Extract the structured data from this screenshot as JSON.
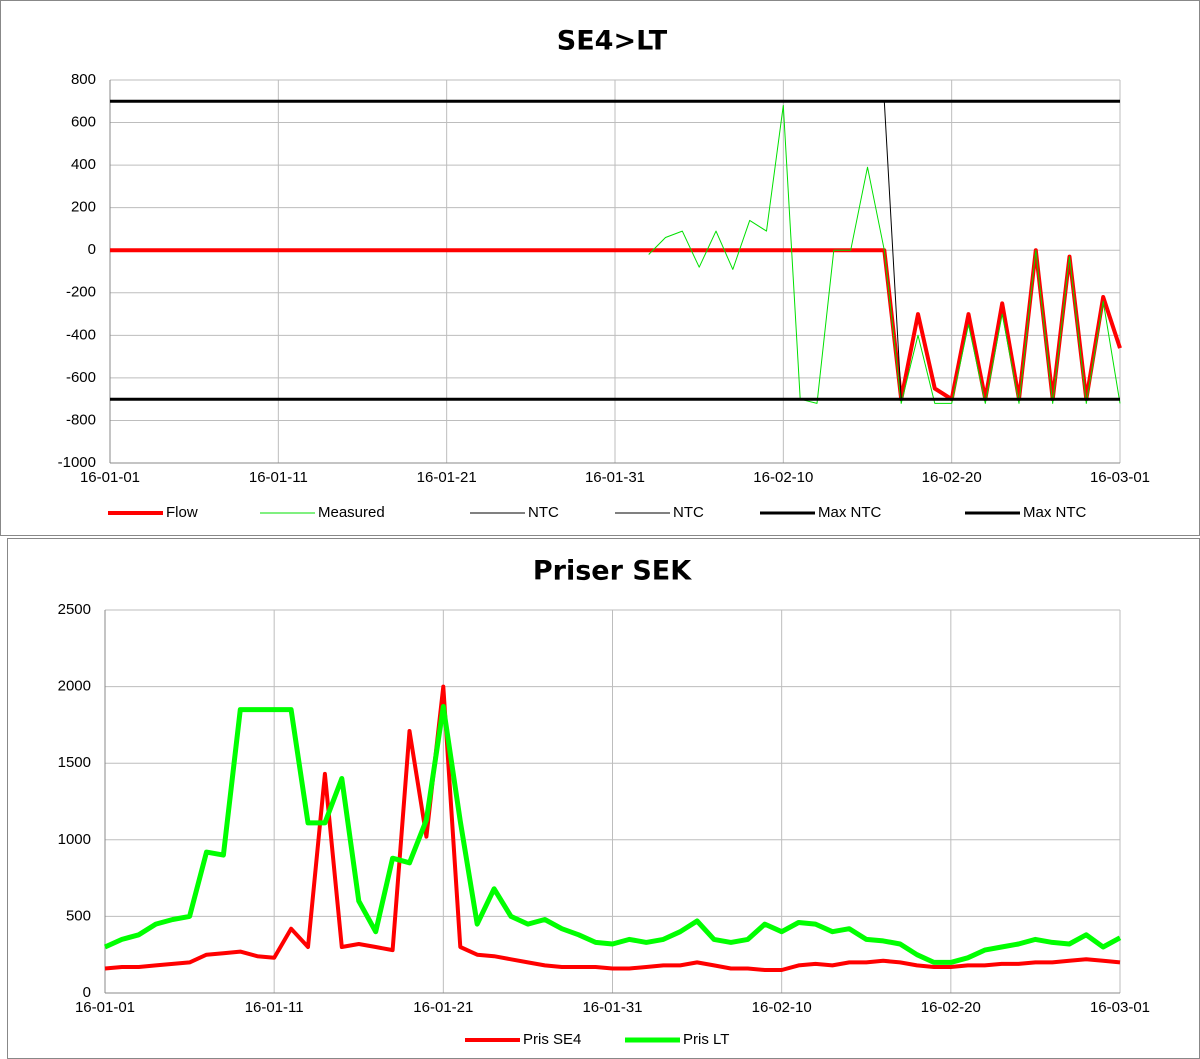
{
  "chart_data": [
    {
      "type": "line",
      "title": "SE4>LT",
      "x": [
        "16-01-01",
        "16-01-02",
        "16-01-03",
        "16-01-04",
        "16-01-05",
        "16-01-06",
        "16-01-07",
        "16-01-08",
        "16-01-09",
        "16-01-10",
        "16-01-11",
        "16-01-12",
        "16-01-13",
        "16-01-14",
        "16-01-15",
        "16-01-16",
        "16-01-17",
        "16-01-18",
        "16-01-19",
        "16-01-20",
        "16-01-21",
        "16-01-22",
        "16-01-23",
        "16-01-24",
        "16-01-25",
        "16-01-26",
        "16-01-27",
        "16-01-28",
        "16-01-29",
        "16-01-30",
        "16-01-31",
        "16-02-01",
        "16-02-02",
        "16-02-03",
        "16-02-04",
        "16-02-05",
        "16-02-06",
        "16-02-07",
        "16-02-08",
        "16-02-09",
        "16-02-10",
        "16-02-11",
        "16-02-12",
        "16-02-13",
        "16-02-14",
        "16-02-15",
        "16-02-16",
        "16-02-17",
        "16-02-18",
        "16-02-19",
        "16-02-20",
        "16-02-21",
        "16-02-22",
        "16-02-23",
        "16-02-24",
        "16-02-25",
        "16-02-26",
        "16-02-27",
        "16-02-28",
        "16-02-29",
        "16-03-01"
      ],
      "series": [
        {
          "name": "Flow",
          "color": "#ff0000",
          "values": [
            0,
            0,
            0,
            0,
            0,
            0,
            0,
            0,
            0,
            0,
            0,
            0,
            0,
            0,
            0,
            0,
            0,
            0,
            0,
            0,
            0,
            0,
            0,
            0,
            0,
            0,
            0,
            0,
            0,
            0,
            0,
            0,
            0,
            0,
            0,
            0,
            0,
            0,
            0,
            0,
            0,
            0,
            0,
            0,
            0,
            0,
            0,
            -700,
            -300,
            -650,
            -700,
            -300,
            -700,
            -250,
            -700,
            0,
            -700,
            -30,
            -700,
            -220,
            -460
          ]
        },
        {
          "name": "Measured",
          "color": "#00e000",
          "values": [
            null,
            null,
            null,
            null,
            null,
            null,
            null,
            null,
            null,
            null,
            null,
            null,
            null,
            null,
            null,
            null,
            null,
            null,
            null,
            null,
            null,
            null,
            null,
            null,
            null,
            null,
            null,
            null,
            null,
            null,
            null,
            null,
            -20,
            60,
            90,
            -80,
            90,
            -90,
            140,
            90,
            680,
            -700,
            -720,
            0,
            0,
            390,
            0,
            -720,
            -400,
            -720,
            -720,
            -350,
            -720,
            -300,
            -720,
            0,
            -720,
            -30,
            -720,
            -240,
            -720
          ]
        },
        {
          "name": "NTC",
          "color": "#000000",
          "values": [
            700,
            700,
            700,
            700,
            700,
            700,
            700,
            700,
            700,
            700,
            700,
            700,
            700,
            700,
            700,
            700,
            700,
            700,
            700,
            700,
            700,
            700,
            700,
            700,
            700,
            700,
            700,
            700,
            700,
            700,
            700,
            700,
            700,
            700,
            700,
            700,
            700,
            700,
            700,
            700,
            700,
            700,
            700,
            700,
            700,
            700,
            700,
            -700,
            -700,
            -700,
            -700,
            -700,
            -700,
            -700,
            -700,
            -700,
            -700,
            -700,
            -700,
            -700,
            -700
          ]
        },
        {
          "name": "NTC",
          "color": "#000000",
          "values": [
            -700,
            -700,
            -700,
            -700,
            -700,
            -700,
            -700,
            -700,
            -700,
            -700,
            -700,
            -700,
            -700,
            -700,
            -700,
            -700,
            -700,
            -700,
            -700,
            -700,
            -700,
            -700,
            -700,
            -700,
            -700,
            -700,
            -700,
            -700,
            -700,
            -700,
            -700,
            -700,
            -700,
            -700,
            -700,
            -700,
            -700,
            -700,
            -700,
            -700,
            -700,
            -700,
            -700,
            -700,
            -700,
            -700,
            -700,
            -700,
            -700,
            -700,
            -700,
            -700,
            -700,
            -700,
            -700,
            -700,
            -700,
            -700,
            -700,
            -700,
            -700
          ]
        },
        {
          "name": "Max NTC",
          "color": "#000000",
          "values": [
            700,
            700,
            700,
            700,
            700,
            700,
            700,
            700,
            700,
            700,
            700,
            700,
            700,
            700,
            700,
            700,
            700,
            700,
            700,
            700,
            700,
            700,
            700,
            700,
            700,
            700,
            700,
            700,
            700,
            700,
            700,
            700,
            700,
            700,
            700,
            700,
            700,
            700,
            700,
            700,
            700,
            700,
            700,
            700,
            700,
            700,
            700,
            700,
            700,
            700,
            700,
            700,
            700,
            700,
            700,
            700,
            700,
            700,
            700,
            700,
            700
          ]
        },
        {
          "name": "Max NTC",
          "color": "#000000",
          "values": [
            -700,
            -700,
            -700,
            -700,
            -700,
            -700,
            -700,
            -700,
            -700,
            -700,
            -700,
            -700,
            -700,
            -700,
            -700,
            -700,
            -700,
            -700,
            -700,
            -700,
            -700,
            -700,
            -700,
            -700,
            -700,
            -700,
            -700,
            -700,
            -700,
            -700,
            -700,
            -700,
            -700,
            -700,
            -700,
            -700,
            -700,
            -700,
            -700,
            -700,
            -700,
            -700,
            -700,
            -700,
            -700,
            -700,
            -700,
            -700,
            -700,
            -700,
            -700,
            -700,
            -700,
            -700,
            -700,
            -700,
            -700,
            -700,
            -700,
            -700,
            -700
          ]
        }
      ],
      "xlim": [
        "16-01-01",
        "16-03-01"
      ],
      "xticks": [
        "16-01-01",
        "16-01-11",
        "16-01-21",
        "16-01-31",
        "16-02-10",
        "16-02-20",
        "16-03-01"
      ],
      "ylim": [
        -1000,
        800
      ],
      "yticks": [
        -1000,
        -800,
        -600,
        -400,
        -200,
        0,
        200,
        400,
        600,
        800
      ],
      "grid": true,
      "legend": "bottom"
    },
    {
      "type": "line",
      "title": "Priser SEK",
      "x": [
        "16-01-01",
        "16-01-02",
        "16-01-03",
        "16-01-04",
        "16-01-05",
        "16-01-06",
        "16-01-07",
        "16-01-08",
        "16-01-09",
        "16-01-10",
        "16-01-11",
        "16-01-12",
        "16-01-13",
        "16-01-14",
        "16-01-15",
        "16-01-16",
        "16-01-17",
        "16-01-18",
        "16-01-19",
        "16-01-20",
        "16-01-21",
        "16-01-22",
        "16-01-23",
        "16-01-24",
        "16-01-25",
        "16-01-26",
        "16-01-27",
        "16-01-28",
        "16-01-29",
        "16-01-30",
        "16-01-31",
        "16-02-01",
        "16-02-02",
        "16-02-03",
        "16-02-04",
        "16-02-05",
        "16-02-06",
        "16-02-07",
        "16-02-08",
        "16-02-09",
        "16-02-10",
        "16-02-11",
        "16-02-12",
        "16-02-13",
        "16-02-14",
        "16-02-15",
        "16-02-16",
        "16-02-17",
        "16-02-18",
        "16-02-19",
        "16-02-20",
        "16-02-21",
        "16-02-22",
        "16-02-23",
        "16-02-24",
        "16-02-25",
        "16-02-26",
        "16-02-27",
        "16-02-28",
        "16-02-29",
        "16-03-01"
      ],
      "series": [
        {
          "name": "Pris SE4",
          "color": "#ff0000",
          "values": [
            160,
            170,
            170,
            180,
            190,
            200,
            250,
            260,
            270,
            240,
            230,
            420,
            300,
            1430,
            300,
            320,
            300,
            280,
            1710,
            1020,
            2000,
            300,
            250,
            240,
            220,
            200,
            180,
            170,
            170,
            170,
            160,
            160,
            170,
            180,
            180,
            200,
            180,
            160,
            160,
            150,
            150,
            180,
            190,
            180,
            200,
            200,
            210,
            200,
            180,
            170,
            170,
            180,
            180,
            190,
            190,
            200,
            200,
            210,
            220,
            210,
            200
          ]
        },
        {
          "name": "Pris LT",
          "color": "#00ff00",
          "values": [
            300,
            350,
            380,
            450,
            480,
            500,
            920,
            900,
            1850,
            1850,
            1850,
            1850,
            1110,
            1110,
            1400,
            600,
            400,
            880,
            850,
            1130,
            1870,
            1120,
            450,
            680,
            500,
            450,
            480,
            420,
            380,
            330,
            320,
            350,
            330,
            350,
            400,
            470,
            350,
            330,
            350,
            450,
            400,
            460,
            450,
            400,
            420,
            350,
            340,
            320,
            250,
            200,
            200,
            230,
            280,
            300,
            320,
            350,
            330,
            320,
            380,
            300,
            360
          ]
        }
      ],
      "xlim": [
        "16-01-01",
        "16-03-01"
      ],
      "xticks": [
        "16-01-01",
        "16-01-11",
        "16-01-21",
        "16-01-31",
        "16-02-10",
        "16-02-20",
        "16-03-01"
      ],
      "ylim": [
        0,
        2500
      ],
      "yticks": [
        0,
        500,
        1000,
        1500,
        2000,
        2500
      ],
      "grid": true,
      "legend": "bottom"
    }
  ]
}
